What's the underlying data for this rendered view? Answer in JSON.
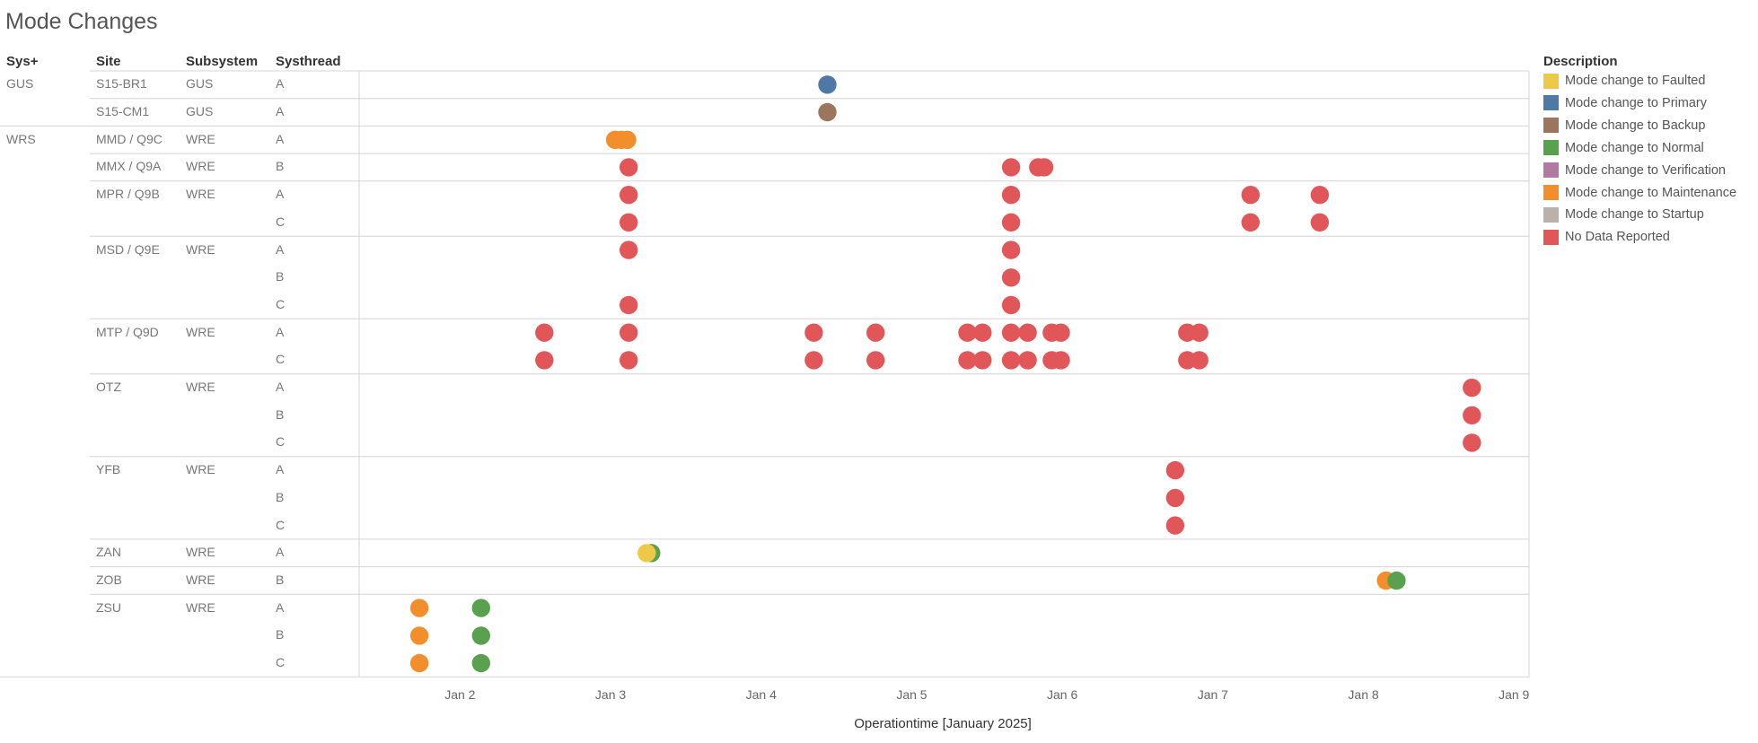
{
  "page_title": "Mode Changes",
  "columns": {
    "sys": "Sys+",
    "site": "Site",
    "subsystem": "Subsystem",
    "systhread": "Systhread"
  },
  "rows": [
    {
      "sys": "GUS",
      "site": "S15-BR1",
      "subsystem": "GUS",
      "thread": "A"
    },
    {
      "sys": "",
      "site": "S15-CM1",
      "subsystem": "GUS",
      "thread": "A"
    },
    {
      "sys": "WRS",
      "site": "MMD / Q9C",
      "subsystem": "WRE",
      "thread": "A"
    },
    {
      "sys": "",
      "site": "MMX / Q9A",
      "subsystem": "WRE",
      "thread": "B"
    },
    {
      "sys": "",
      "site": "MPR / Q9B",
      "subsystem": "WRE",
      "thread": "A"
    },
    {
      "sys": "",
      "site": "",
      "subsystem": "",
      "thread": "C"
    },
    {
      "sys": "",
      "site": "MSD / Q9E",
      "subsystem": "WRE",
      "thread": "A"
    },
    {
      "sys": "",
      "site": "",
      "subsystem": "",
      "thread": "B"
    },
    {
      "sys": "",
      "site": "",
      "subsystem": "",
      "thread": "C"
    },
    {
      "sys": "",
      "site": "MTP / Q9D",
      "subsystem": "WRE",
      "thread": "A"
    },
    {
      "sys": "",
      "site": "",
      "subsystem": "",
      "thread": "C"
    },
    {
      "sys": "",
      "site": "OTZ",
      "subsystem": "WRE",
      "thread": "A"
    },
    {
      "sys": "",
      "site": "",
      "subsystem": "",
      "thread": "B"
    },
    {
      "sys": "",
      "site": "",
      "subsystem": "",
      "thread": "C"
    },
    {
      "sys": "",
      "site": "YFB",
      "subsystem": "WRE",
      "thread": "A"
    },
    {
      "sys": "",
      "site": "",
      "subsystem": "",
      "thread": "B"
    },
    {
      "sys": "",
      "site": "",
      "subsystem": "",
      "thread": "C"
    },
    {
      "sys": "",
      "site": "ZAN",
      "subsystem": "WRE",
      "thread": "A"
    },
    {
      "sys": "",
      "site": "ZOB",
      "subsystem": "WRE",
      "thread": "B"
    },
    {
      "sys": "",
      "site": "ZSU",
      "subsystem": "WRE",
      "thread": "A"
    },
    {
      "sys": "",
      "site": "",
      "subsystem": "",
      "thread": "B"
    },
    {
      "sys": "",
      "site": "",
      "subsystem": "",
      "thread": "C"
    }
  ],
  "chart_data": {
    "type": "scatter",
    "xlabel": "Operationtime [January 2025]",
    "x_unit": "day of January 2025",
    "xlim": [
      1.33,
      9.1
    ],
    "x_ticks": [
      {
        "value": 2,
        "label": "Jan 2"
      },
      {
        "value": 3,
        "label": "Jan 3"
      },
      {
        "value": 4,
        "label": "Jan 4"
      },
      {
        "value": 5,
        "label": "Jan 5"
      },
      {
        "value": 6,
        "label": "Jan 6"
      },
      {
        "value": 7,
        "label": "Jan 7"
      },
      {
        "value": 8,
        "label": "Jan 8"
      },
      {
        "value": 9,
        "label": "Jan 9"
      }
    ],
    "legend_title": "Description",
    "legend_position": "right",
    "categories": [
      {
        "name": "Mode change to Faulted",
        "color": "#EDC948"
      },
      {
        "name": "Mode change to Primary",
        "color": "#4E79A7"
      },
      {
        "name": "Mode change to Backup",
        "color": "#9C755F"
      },
      {
        "name": "Mode change to Normal",
        "color": "#59A14F"
      },
      {
        "name": "Mode change to Verification",
        "color": "#B07AA1"
      },
      {
        "name": "Mode change to Maintenance",
        "color": "#F28E2B"
      },
      {
        "name": "Mode change to Startup",
        "color": "#BAB0AC"
      },
      {
        "name": "No Data Reported",
        "color": "#E15759"
      }
    ],
    "points": [
      {
        "row": 0,
        "x": 4.44,
        "cat": 1
      },
      {
        "row": 1,
        "x": 4.44,
        "cat": 2
      },
      {
        "row": 2,
        "x": 3.03,
        "cat": 5
      },
      {
        "row": 2,
        "x": 3.07,
        "cat": 5
      },
      {
        "row": 2,
        "x": 3.11,
        "cat": 5
      },
      {
        "row": 3,
        "x": 3.12,
        "cat": 7
      },
      {
        "row": 3,
        "x": 5.66,
        "cat": 7
      },
      {
        "row": 3,
        "x": 5.84,
        "cat": 7
      },
      {
        "row": 3,
        "x": 5.88,
        "cat": 7
      },
      {
        "row": 4,
        "x": 3.12,
        "cat": 7
      },
      {
        "row": 4,
        "x": 5.66,
        "cat": 7
      },
      {
        "row": 4,
        "x": 7.25,
        "cat": 7
      },
      {
        "row": 4,
        "x": 7.71,
        "cat": 7
      },
      {
        "row": 5,
        "x": 3.12,
        "cat": 7
      },
      {
        "row": 5,
        "x": 5.66,
        "cat": 7
      },
      {
        "row": 5,
        "x": 7.25,
        "cat": 7
      },
      {
        "row": 5,
        "x": 7.71,
        "cat": 7
      },
      {
        "row": 6,
        "x": 3.12,
        "cat": 7
      },
      {
        "row": 6,
        "x": 5.66,
        "cat": 7
      },
      {
        "row": 7,
        "x": 5.66,
        "cat": 7
      },
      {
        "row": 8,
        "x": 3.12,
        "cat": 7
      },
      {
        "row": 8,
        "x": 5.66,
        "cat": 7
      },
      {
        "row": 9,
        "x": 2.56,
        "cat": 7
      },
      {
        "row": 9,
        "x": 3.12,
        "cat": 7
      },
      {
        "row": 9,
        "x": 4.35,
        "cat": 7
      },
      {
        "row": 9,
        "x": 4.76,
        "cat": 7
      },
      {
        "row": 9,
        "x": 5.37,
        "cat": 7
      },
      {
        "row": 9,
        "x": 5.47,
        "cat": 7
      },
      {
        "row": 9,
        "x": 5.66,
        "cat": 7
      },
      {
        "row": 9,
        "x": 5.77,
        "cat": 7
      },
      {
        "row": 9,
        "x": 5.93,
        "cat": 7
      },
      {
        "row": 9,
        "x": 5.99,
        "cat": 7
      },
      {
        "row": 9,
        "x": 6.83,
        "cat": 7
      },
      {
        "row": 9,
        "x": 6.91,
        "cat": 7
      },
      {
        "row": 10,
        "x": 2.56,
        "cat": 7
      },
      {
        "row": 10,
        "x": 3.12,
        "cat": 7
      },
      {
        "row": 10,
        "x": 4.35,
        "cat": 7
      },
      {
        "row": 10,
        "x": 4.76,
        "cat": 7
      },
      {
        "row": 10,
        "x": 5.37,
        "cat": 7
      },
      {
        "row": 10,
        "x": 5.47,
        "cat": 7
      },
      {
        "row": 10,
        "x": 5.66,
        "cat": 7
      },
      {
        "row": 10,
        "x": 5.77,
        "cat": 7
      },
      {
        "row": 10,
        "x": 5.93,
        "cat": 7
      },
      {
        "row": 10,
        "x": 5.99,
        "cat": 7
      },
      {
        "row": 10,
        "x": 6.83,
        "cat": 7
      },
      {
        "row": 10,
        "x": 6.91,
        "cat": 7
      },
      {
        "row": 11,
        "x": 8.72,
        "cat": 7
      },
      {
        "row": 12,
        "x": 8.72,
        "cat": 7
      },
      {
        "row": 13,
        "x": 8.72,
        "cat": 7
      },
      {
        "row": 14,
        "x": 6.75,
        "cat": 7
      },
      {
        "row": 15,
        "x": 6.75,
        "cat": 7
      },
      {
        "row": 16,
        "x": 6.75,
        "cat": 7
      },
      {
        "row": 17,
        "x": 3.27,
        "cat": 3
      },
      {
        "row": 17,
        "x": 3.24,
        "cat": 0
      },
      {
        "row": 18,
        "x": 8.15,
        "cat": 5
      },
      {
        "row": 18,
        "x": 8.22,
        "cat": 3
      },
      {
        "row": 19,
        "x": 1.73,
        "cat": 5
      },
      {
        "row": 19,
        "x": 2.14,
        "cat": 3
      },
      {
        "row": 20,
        "x": 1.73,
        "cat": 5
      },
      {
        "row": 20,
        "x": 2.14,
        "cat": 3
      },
      {
        "row": 21,
        "x": 1.73,
        "cat": 5
      },
      {
        "row": 21,
        "x": 2.14,
        "cat": 3
      }
    ]
  }
}
